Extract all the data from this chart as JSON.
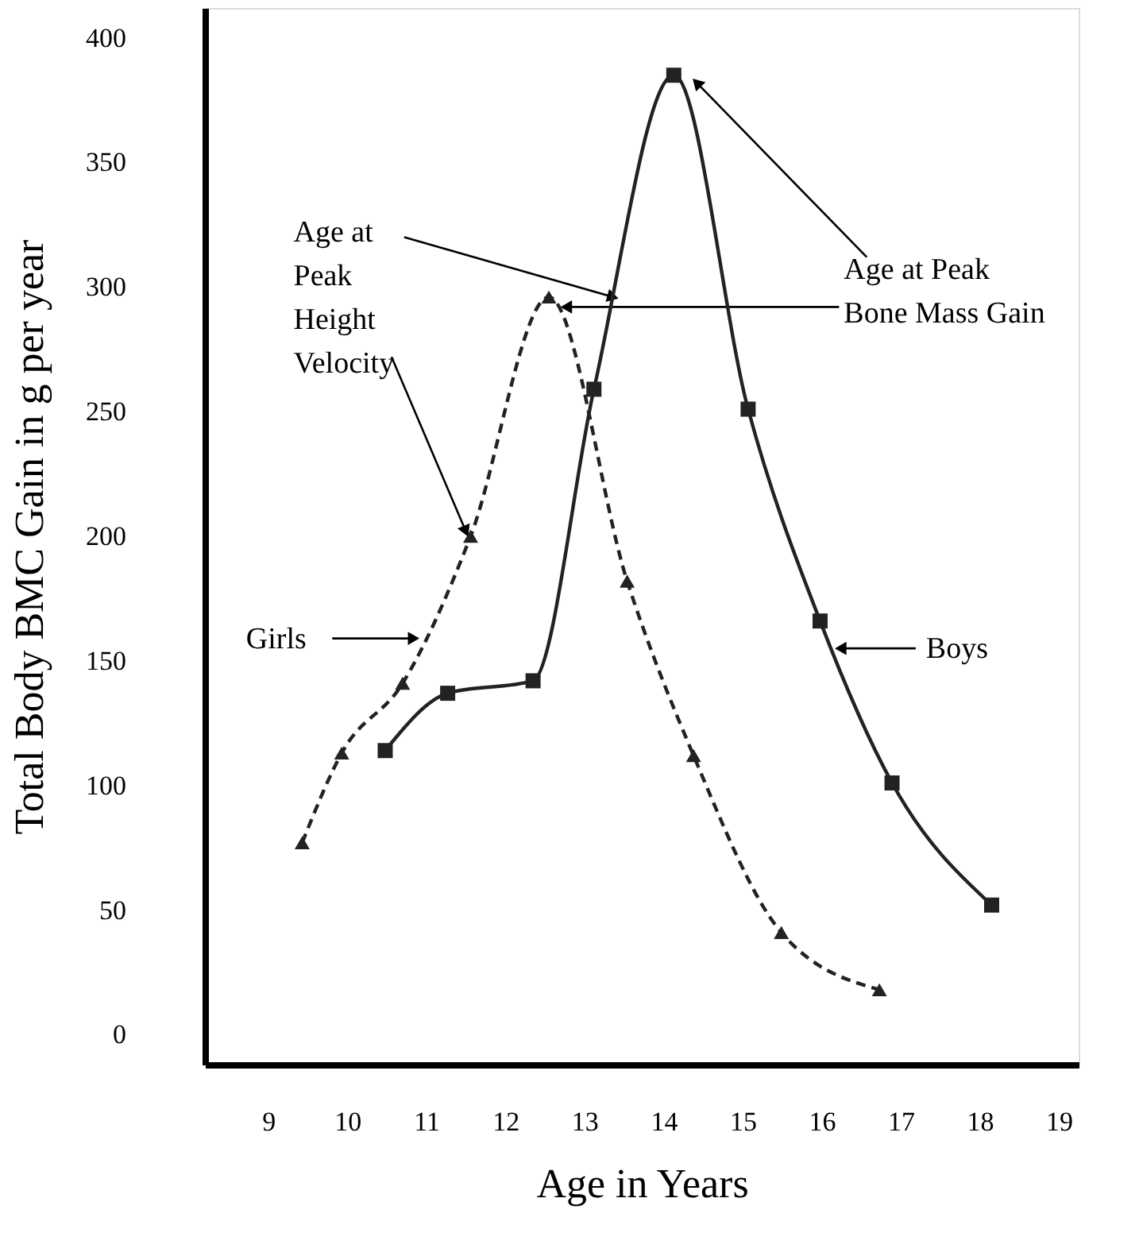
{
  "chart_data": {
    "type": "line",
    "xlabel": "Age in Years",
    "ylabel": "Total Body BMC Gain in g per year",
    "xlim": [
      8.2,
      19.25
    ],
    "ylim": [
      -12,
      412
    ],
    "xticks": [
      9,
      10,
      11,
      12,
      13,
      14,
      15,
      16,
      17,
      18,
      19
    ],
    "yticks": [
      0,
      50,
      100,
      150,
      200,
      250,
      300,
      350,
      400
    ],
    "grid": false,
    "series": [
      {
        "name": "Girls",
        "color": "#222222",
        "marker": "triangle",
        "line_style": "dashed",
        "x": [
          9.43,
          9.93,
          10.7,
          11.56,
          12.55,
          13.54,
          14.38,
          15.49,
          16.73
        ],
        "values": [
          77,
          113,
          141,
          200,
          296,
          182,
          112,
          41,
          18
        ]
      },
      {
        "name": "Boys",
        "color": "#222222",
        "marker": "square",
        "line_style": "solid",
        "x": [
          10.48,
          11.27,
          12.35,
          13.12,
          14.13,
          15.07,
          15.98,
          16.89,
          18.15
        ],
        "values": [
          114,
          137,
          142,
          259,
          385,
          251,
          166,
          101,
          52
        ]
      }
    ],
    "annotations": [
      {
        "text": "Age at Peak Height Velocity",
        "x": 13.36,
        "y": 296
      },
      {
        "text": "Age at Peak Bone Mass Gain",
        "x": 14.42,
        "y": 382
      }
    ]
  }
}
